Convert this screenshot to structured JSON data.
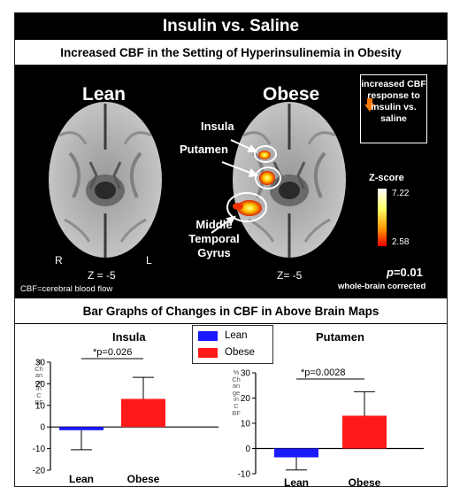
{
  "header": {
    "title": "Insulin vs. Saline",
    "subtitle": "Increased  CBF  in  the  Setting  of  Hyperinsulinemia  in  Obesity"
  },
  "brain_maps": {
    "lean_label": "Lean",
    "obese_label": "Obese",
    "regions": {
      "insula": "Insula",
      "putamen": "Putamen",
      "middle_temporal": "Middle Temporal Gyrus"
    },
    "lean_z": "Z = -5",
    "obese_z": "Z= -5",
    "orient_r": "R",
    "orient_l": "L",
    "footnote": "CBF=cerebral blood flow",
    "legend": "increased CBF response to insulin vs. saline",
    "zscore_label": "Z-score",
    "zscore_max": "7.22",
    "zscore_min": "2.58",
    "p_value": "p=0.01",
    "p_prefix": "p",
    "p_suffix": "=0.01",
    "correction": "whole-brain corrected"
  },
  "bars_section": {
    "title": "Bar Graphs of Changes in CBF in Above Brain Maps",
    "legend": [
      {
        "label": "Lean",
        "color": "#1a1aff"
      },
      {
        "label": "Obese",
        "color": "#ff1a1a"
      }
    ]
  },
  "chart_data": [
    {
      "type": "bar",
      "title": "Insula",
      "categories": [
        "Lean",
        "Obese"
      ],
      "values": [
        -1.5,
        13
      ],
      "error_up": [
        0,
        10
      ],
      "error_down": [
        9,
        0
      ],
      "ylim": [
        -20,
        30
      ],
      "yticks": [
        -20,
        -10,
        0,
        10,
        20,
        30
      ],
      "ylabel_vertical": "% Change in CBF",
      "significance": "*p=0.026"
    },
    {
      "type": "bar",
      "title": "Putamen",
      "categories": [
        "Lean",
        "Obese"
      ],
      "values": [
        -3.5,
        13
      ],
      "error_up": [
        0,
        9.5
      ],
      "error_down": [
        5,
        0
      ],
      "ylim": [
        -10,
        30
      ],
      "yticks": [
        -10,
        0,
        10,
        20,
        30
      ],
      "ylabel_vertical": "% Change in CBF",
      "significance": "*p=0.0028"
    }
  ]
}
